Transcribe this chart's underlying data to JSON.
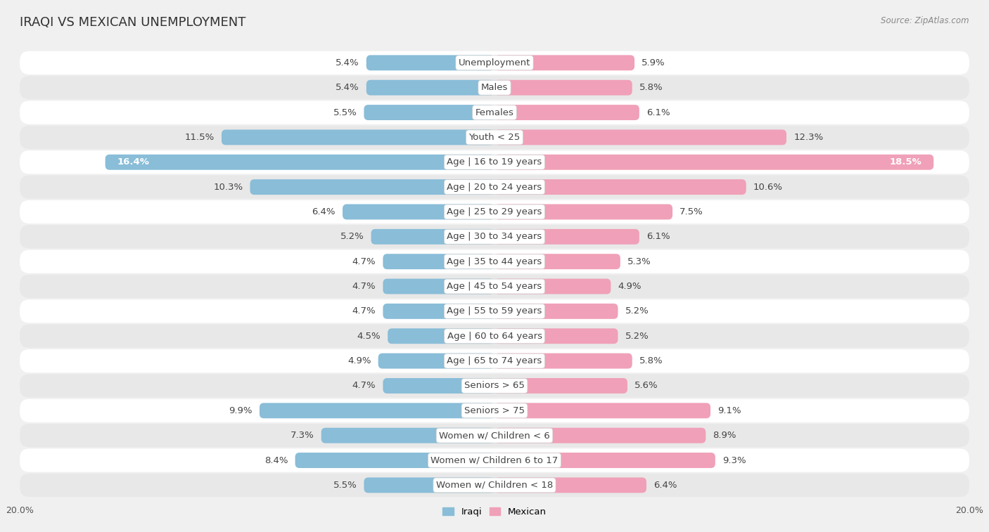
{
  "title": "IRAQI VS MEXICAN UNEMPLOYMENT",
  "source": "Source: ZipAtlas.com",
  "categories": [
    "Unemployment",
    "Males",
    "Females",
    "Youth < 25",
    "Age | 16 to 19 years",
    "Age | 20 to 24 years",
    "Age | 25 to 29 years",
    "Age | 30 to 34 years",
    "Age | 35 to 44 years",
    "Age | 45 to 54 years",
    "Age | 55 to 59 years",
    "Age | 60 to 64 years",
    "Age | 65 to 74 years",
    "Seniors > 65",
    "Seniors > 75",
    "Women w/ Children < 6",
    "Women w/ Children 6 to 17",
    "Women w/ Children < 18"
  ],
  "iraqi": [
    5.4,
    5.4,
    5.5,
    11.5,
    16.4,
    10.3,
    6.4,
    5.2,
    4.7,
    4.7,
    4.7,
    4.5,
    4.9,
    4.7,
    9.9,
    7.3,
    8.4,
    5.5
  ],
  "mexican": [
    5.9,
    5.8,
    6.1,
    12.3,
    18.5,
    10.6,
    7.5,
    6.1,
    5.3,
    4.9,
    5.2,
    5.2,
    5.8,
    5.6,
    9.1,
    8.9,
    9.3,
    6.4
  ],
  "iraqi_color": "#89bdd8",
  "mexican_color": "#f0a0b8",
  "background_color": "#f0f0f0",
  "row_light": "#ffffff",
  "row_dark": "#e8e8e8",
  "axis_limit": 20.0,
  "bar_height": 0.62,
  "label_fontsize": 9.5,
  "category_fontsize": 9.5,
  "title_fontsize": 13,
  "value_label_threshold": 14.0
}
